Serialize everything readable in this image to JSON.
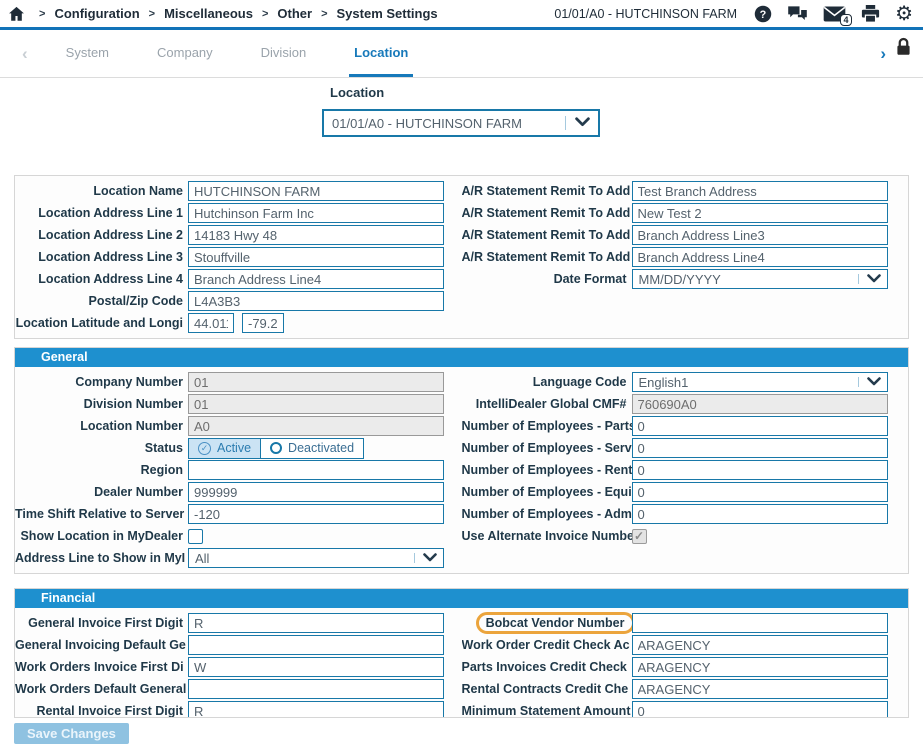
{
  "header": {
    "breadcrumb": [
      "Configuration",
      "Miscellaneous",
      "Other",
      "System Settings"
    ],
    "account": "01/01/A0 - HUTCHINSON FARM",
    "mail_badge": "4",
    "icons": [
      "home-icon",
      "help-icon",
      "chat-icon",
      "mail-icon",
      "print-icon",
      "settings-icon"
    ]
  },
  "tabs": {
    "items": [
      "System",
      "Company",
      "Division",
      "Location"
    ],
    "active": "Location",
    "icons": [
      "chevron-left-icon",
      "chevron-right-icon",
      "lock-icon"
    ]
  },
  "location_selector": {
    "label": "Location",
    "value": "01/01/A0 - HUTCHINSON FARM"
  },
  "form": {
    "sections": [
      {
        "title": null,
        "left": [
          {
            "label": "Location Name",
            "type": "text",
            "value": "HUTCHINSON FARM"
          },
          {
            "label": "Location Address Line 1",
            "type": "text",
            "value": "Hutchinson Farm Inc"
          },
          {
            "label": "Location Address Line 2",
            "type": "text",
            "value": "14183 Hwy 48"
          },
          {
            "label": "Location Address Line 3",
            "type": "text",
            "value": "Stouffville"
          },
          {
            "label": "Location Address Line 4",
            "type": "text",
            "value": "Branch Address Line4"
          },
          {
            "label": "Postal/Zip Code",
            "type": "text",
            "value": "L4A3B3"
          },
          {
            "label": "Location Latitude and Longi",
            "type": "latlong",
            "values": [
              "44.011",
              "-79.2"
            ]
          }
        ],
        "right": [
          {
            "label": "A/R Statement Remit To Add",
            "type": "text",
            "value": "Test Branch Address"
          },
          {
            "label": "A/R Statement Remit To Add",
            "type": "text",
            "value": "New Test 2"
          },
          {
            "label": "A/R Statement Remit To Add",
            "type": "text",
            "value": "Branch Address Line3"
          },
          {
            "label": "A/R Statement Remit To Add",
            "type": "text",
            "value": "Branch Address Line4"
          },
          {
            "label": "Date Format",
            "type": "select",
            "value": "MM/DD/YYYY"
          }
        ]
      },
      {
        "title": "General",
        "left": [
          {
            "label": "Company Number",
            "type": "disabled",
            "value": "01"
          },
          {
            "label": "Division Number",
            "type": "disabled",
            "value": "01"
          },
          {
            "label": "Location Number",
            "type": "disabled",
            "value": "A0"
          },
          {
            "label": "Status",
            "type": "radio",
            "options": [
              "Active",
              "Deactivated"
            ],
            "selected": "Active"
          },
          {
            "label": "Region",
            "type": "text",
            "value": ""
          },
          {
            "label": "Dealer Number",
            "type": "text",
            "value": "999999"
          },
          {
            "label": "Time Shift Relative to Server",
            "type": "text",
            "value": "-120"
          },
          {
            "label": "Show Location in MyDealer",
            "type": "checkbox",
            "checked": false
          },
          {
            "label": "Address Line to Show in MyI",
            "type": "select",
            "value": "All"
          }
        ],
        "right": [
          {
            "label": "Language Code",
            "type": "select",
            "value": "English1"
          },
          {
            "label": "IntelliDealer Global CMF#",
            "type": "disabled",
            "value": "760690A0"
          },
          {
            "label": "Number of Employees - Parts",
            "type": "text",
            "value": "0"
          },
          {
            "label": "Number of Employees - Serv",
            "type": "text",
            "value": "0"
          },
          {
            "label": "Number of Employees - Rent",
            "type": "text",
            "value": "0"
          },
          {
            "label": "Number of Employees - Equi",
            "type": "text",
            "value": "0"
          },
          {
            "label": "Number of Employees - Adm",
            "type": "text",
            "value": "0"
          },
          {
            "label": "Use Alternate Invoice Numbe",
            "type": "checkbox",
            "checked": true,
            "disabled": true
          }
        ]
      },
      {
        "title": "Financial",
        "left": [
          {
            "label": "General Invoice First Digit",
            "type": "text",
            "value": "R"
          },
          {
            "label": "General Invoicing Default Ge",
            "type": "text",
            "value": ""
          },
          {
            "label": "Work Orders Invoice First Di",
            "type": "text",
            "value": "W"
          },
          {
            "label": "Work Orders Default General",
            "type": "text",
            "value": ""
          },
          {
            "label": "Rental Invoice First Digit",
            "type": "text",
            "value": "R"
          }
        ],
        "right": [
          {
            "label": "Bobcat Vendor Number",
            "type": "text",
            "value": "",
            "highlight": true
          },
          {
            "label": "Work Order Credit Check Ac",
            "type": "text",
            "value": "ARAGENCY"
          },
          {
            "label": "Parts Invoices Credit Check",
            "type": "text",
            "value": "ARAGENCY"
          },
          {
            "label": "Rental Contracts Credit Che",
            "type": "text",
            "value": "ARAGENCY"
          },
          {
            "label": "Minimum Statement Amount",
            "type": "text",
            "value": "0"
          }
        ]
      }
    ]
  },
  "save_button_label": "Save Changes",
  "colors": {
    "accent_blue": "#1779BA",
    "section_header": "#1E90CF",
    "input_border": "#1878A8",
    "highlight_orange": "#EBA43C",
    "save_button": "#8FC2E1",
    "topbar_icon": "#1F2C38"
  }
}
